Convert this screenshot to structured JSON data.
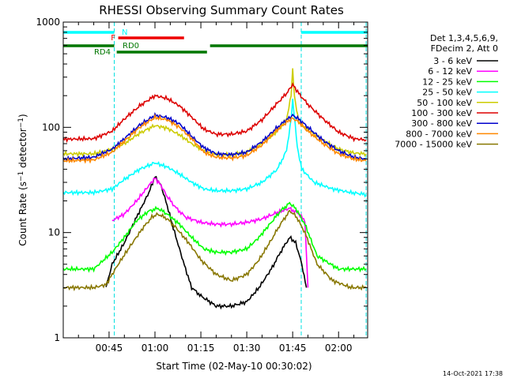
{
  "chart_data": {
    "type": "line",
    "title": "RHESSI Observing Summary Count Rates",
    "xlabel": "Start Time (02-May-10 00:30:02)",
    "ylabel": "Count Rate (s⁻¹ detector⁻¹)",
    "ylabel_parts": {
      "main": "Count Rate (s",
      "sup1": "−1",
      "mid": " detector",
      "sup2": "−1",
      "end": ")"
    },
    "yscale": "log",
    "ylim": [
      1,
      1000
    ],
    "xlim_minutes": [
      30.03,
      129.5
    ],
    "x_ticks": [
      {
        "minute": 45,
        "label": "00:45"
      },
      {
        "minute": 60,
        "label": "01:00"
      },
      {
        "minute": 75,
        "label": "01:15"
      },
      {
        "minute": 90,
        "label": "01:30"
      },
      {
        "minute": 105,
        "label": "01:45"
      },
      {
        "minute": 120,
        "label": "02:00"
      }
    ],
    "y_ticks": [
      {
        "value": 1,
        "label": "1"
      },
      {
        "value": 10,
        "label": "10"
      },
      {
        "value": 100,
        "label": "100"
      },
      {
        "value": 1000,
        "label": "1000"
      }
    ],
    "legend_header": [
      "Det 1,3,4,5,6,9,",
      "FDecim 2, Att 0"
    ],
    "legend_position": "right",
    "timestamp": "14-Oct-2021 17:38",
    "night_boundaries_minutes": [
      30.03,
      46.7,
      107.8,
      129.0
    ],
    "flags": [
      {
        "label": "N",
        "color": "#00ffff",
        "segments": [
          [
            30.03,
            46.7
          ],
          [
            107.8,
            129.5
          ]
        ]
      },
      {
        "label": "F",
        "color": "#ee0000",
        "segments": [
          [
            48.0,
            69.5
          ]
        ]
      },
      {
        "label": "RD0",
        "color": "#007700",
        "segments": [
          [
            30.03,
            46.7
          ],
          [
            78.0,
            129.5
          ]
        ]
      },
      {
        "label": "RD4",
        "color": "#007700",
        "segments": [
          [
            47.5,
            77.0
          ]
        ]
      }
    ],
    "series": [
      {
        "name": "3 - 6 keV",
        "color": "#000000",
        "points": [
          [
            44.0,
            3.0
          ],
          [
            46.0,
            5.0
          ],
          [
            50.0,
            8.0
          ],
          [
            54.0,
            14.0
          ],
          [
            58.0,
            24.0
          ],
          [
            60.0,
            34.0
          ],
          [
            62.0,
            28.0
          ],
          [
            64.0,
            18.0
          ],
          [
            66.0,
            11.0
          ],
          [
            68.0,
            7.0
          ],
          [
            70.0,
            4.5
          ],
          [
            72.0,
            3.0
          ],
          [
            75.0,
            2.5
          ],
          [
            80.0,
            2.0
          ],
          [
            85.0,
            2.0
          ],
          [
            90.0,
            2.2
          ],
          [
            94.0,
            3.0
          ],
          [
            98.0,
            4.5
          ],
          [
            101.0,
            6.5
          ],
          [
            104.0,
            9.0
          ],
          [
            106.0,
            8.0
          ],
          [
            108.0,
            5.0
          ],
          [
            109.5,
            3.0
          ]
        ]
      },
      {
        "name": "6 - 12 keV",
        "color": "#ff00ff",
        "points": [
          [
            46.0,
            13.0
          ],
          [
            50.0,
            15.0
          ],
          [
            54.0,
            20.0
          ],
          [
            58.0,
            28.0
          ],
          [
            60.0,
            33.0
          ],
          [
            62.0,
            28.0
          ],
          [
            64.0,
            22.0
          ],
          [
            67.0,
            17.0
          ],
          [
            70.0,
            14.0
          ],
          [
            75.0,
            12.5
          ],
          [
            80.0,
            12.0
          ],
          [
            85.0,
            12.0
          ],
          [
            90.0,
            12.5
          ],
          [
            95.0,
            13.5
          ],
          [
            100.0,
            15.5
          ],
          [
            104.0,
            17.0
          ],
          [
            107.0,
            15.0
          ],
          [
            109.0,
            13.0
          ],
          [
            110.0,
            3.0
          ]
        ]
      },
      {
        "name": "12 - 25 keV",
        "color": "#00ff00",
        "points": [
          [
            30.03,
            4.5
          ],
          [
            40.0,
            4.5
          ],
          [
            46.0,
            6.5
          ],
          [
            50.0,
            9.0
          ],
          [
            54.0,
            13.0
          ],
          [
            58.0,
            16.0
          ],
          [
            61.0,
            17.0
          ],
          [
            64.0,
            15.0
          ],
          [
            68.0,
            12.0
          ],
          [
            72.0,
            9.0
          ],
          [
            76.0,
            7.0
          ],
          [
            80.0,
            6.5
          ],
          [
            85.0,
            6.5
          ],
          [
            90.0,
            7.0
          ],
          [
            94.0,
            9.0
          ],
          [
            98.0,
            12.5
          ],
          [
            101.0,
            16.0
          ],
          [
            104.0,
            19.0
          ],
          [
            106.0,
            17.0
          ],
          [
            109.0,
            12.0
          ],
          [
            113.0,
            6.0
          ],
          [
            120.0,
            4.5
          ],
          [
            129.0,
            4.5
          ]
        ]
      },
      {
        "name": "25 - 50 keV",
        "color": "#00ffff",
        "points": [
          [
            30.03,
            24.0
          ],
          [
            40.0,
            24.0
          ],
          [
            46.0,
            26.0
          ],
          [
            50.0,
            32.0
          ],
          [
            55.0,
            40.0
          ],
          [
            60.0,
            46.0
          ],
          [
            64.0,
            42.0
          ],
          [
            68.0,
            36.0
          ],
          [
            72.0,
            30.0
          ],
          [
            76.0,
            26.0
          ],
          [
            80.0,
            25.0
          ],
          [
            85.0,
            25.0
          ],
          [
            90.0,
            26.0
          ],
          [
            95.0,
            30.0
          ],
          [
            100.0,
            40.0
          ],
          [
            103.0,
            60.0
          ],
          [
            104.5,
            120.0
          ],
          [
            105.0,
            185.0
          ],
          [
            105.5,
            130.0
          ],
          [
            106.5,
            65.0
          ],
          [
            108.0,
            40.0
          ],
          [
            112.0,
            30.0
          ],
          [
            118.0,
            26.0
          ],
          [
            124.0,
            24.0
          ],
          [
            129.0,
            23.0
          ]
        ]
      },
      {
        "name": "50 - 100 keV",
        "color": "#cccc00",
        "points": [
          [
            30.03,
            56.0
          ],
          [
            40.0,
            56.0
          ],
          [
            46.0,
            62.0
          ],
          [
            50.0,
            70.0
          ],
          [
            55.0,
            88.0
          ],
          [
            60.0,
            104.0
          ],
          [
            64.0,
            98.0
          ],
          [
            68.0,
            85.0
          ],
          [
            72.0,
            70.0
          ],
          [
            76.0,
            60.0
          ],
          [
            80.0,
            55.0
          ],
          [
            85.0,
            55.0
          ],
          [
            90.0,
            58.0
          ],
          [
            95.0,
            70.0
          ],
          [
            100.0,
            92.0
          ],
          [
            103.0,
            120.0
          ],
          [
            104.5,
            200.0
          ],
          [
            105.0,
            360.0
          ],
          [
            105.6,
            200.0
          ],
          [
            107.0,
            110.0
          ],
          [
            110.0,
            95.0
          ],
          [
            115.0,
            75.0
          ],
          [
            120.0,
            62.0
          ],
          [
            125.0,
            57.0
          ],
          [
            129.0,
            56.0
          ]
        ]
      },
      {
        "name": "100 - 300 keV",
        "color": "#dd0000",
        "points": [
          [
            30.03,
            77.0
          ],
          [
            40.0,
            78.0
          ],
          [
            46.0,
            92.0
          ],
          [
            50.0,
            120.0
          ],
          [
            55.0,
            160.0
          ],
          [
            60.0,
            200.0
          ],
          [
            64.0,
            188.0
          ],
          [
            68.0,
            160.0
          ],
          [
            72.0,
            125.0
          ],
          [
            76.0,
            96.0
          ],
          [
            80.0,
            86.0
          ],
          [
            85.0,
            86.0
          ],
          [
            90.0,
            92.0
          ],
          [
            95.0,
            118.0
          ],
          [
            100.0,
            170.0
          ],
          [
            103.0,
            210.0
          ],
          [
            105.0,
            255.0
          ],
          [
            107.0,
            210.0
          ],
          [
            110.0,
            165.0
          ],
          [
            115.0,
            120.0
          ],
          [
            120.0,
            90.0
          ],
          [
            125.0,
            78.0
          ],
          [
            129.0,
            76.0
          ]
        ]
      },
      {
        "name": "300 - 800 keV",
        "color": "#0000cc",
        "points": [
          [
            30.03,
            50.0
          ],
          [
            40.0,
            52.0
          ],
          [
            46.0,
            62.0
          ],
          [
            50.0,
            78.0
          ],
          [
            55.0,
            105.0
          ],
          [
            60.0,
            130.0
          ],
          [
            64.0,
            124.0
          ],
          [
            68.0,
            108.0
          ],
          [
            72.0,
            82.0
          ],
          [
            76.0,
            64.0
          ],
          [
            80.0,
            56.0
          ],
          [
            85.0,
            55.0
          ],
          [
            90.0,
            58.0
          ],
          [
            95.0,
            73.0
          ],
          [
            100.0,
            100.0
          ],
          [
            103.0,
            118.0
          ],
          [
            105.0,
            130.0
          ],
          [
            107.0,
            120.0
          ],
          [
            110.0,
            100.0
          ],
          [
            115.0,
            75.0
          ],
          [
            120.0,
            60.0
          ],
          [
            125.0,
            52.0
          ],
          [
            129.0,
            50.0
          ]
        ]
      },
      {
        "name": "800 - 7000 keV",
        "color": "#ff8800",
        "points": [
          [
            30.03,
            48.0
          ],
          [
            40.0,
            49.0
          ],
          [
            46.0,
            58.0
          ],
          [
            50.0,
            74.0
          ],
          [
            55.0,
            100.0
          ],
          [
            60.0,
            124.0
          ],
          [
            64.0,
            118.0
          ],
          [
            68.0,
            100.0
          ],
          [
            72.0,
            78.0
          ],
          [
            76.0,
            58.0
          ],
          [
            80.0,
            52.0
          ],
          [
            85.0,
            51.0
          ],
          [
            90.0,
            54.0
          ],
          [
            95.0,
            68.0
          ],
          [
            100.0,
            95.0
          ],
          [
            103.0,
            112.0
          ],
          [
            105.0,
            122.0
          ],
          [
            107.0,
            112.0
          ],
          [
            110.0,
            92.0
          ],
          [
            115.0,
            70.0
          ],
          [
            120.0,
            56.0
          ],
          [
            125.0,
            50.0
          ],
          [
            129.0,
            48.0
          ]
        ]
      },
      {
        "name": "7000 - 15000 keV",
        "color": "#887700",
        "points": [
          [
            30.03,
            3.0
          ],
          [
            40.0,
            3.0
          ],
          [
            44.0,
            3.2
          ],
          [
            48.0,
            5.0
          ],
          [
            52.0,
            7.5
          ],
          [
            56.0,
            11.0
          ],
          [
            59.0,
            14.0
          ],
          [
            61.0,
            15.0
          ],
          [
            64.0,
            13.5
          ],
          [
            67.0,
            11.0
          ],
          [
            71.0,
            8.0
          ],
          [
            75.0,
            5.5
          ],
          [
            80.0,
            4.0
          ],
          [
            85.0,
            3.5
          ],
          [
            90.0,
            4.0
          ],
          [
            94.0,
            5.5
          ],
          [
            98.0,
            8.5
          ],
          [
            101.0,
            12.0
          ],
          [
            104.0,
            16.0
          ],
          [
            106.0,
            14.5
          ],
          [
            109.0,
            10.0
          ],
          [
            113.0,
            5.0
          ],
          [
            118.0,
            3.5
          ],
          [
            124.0,
            3.0
          ],
          [
            129.0,
            3.0
          ]
        ]
      }
    ]
  }
}
